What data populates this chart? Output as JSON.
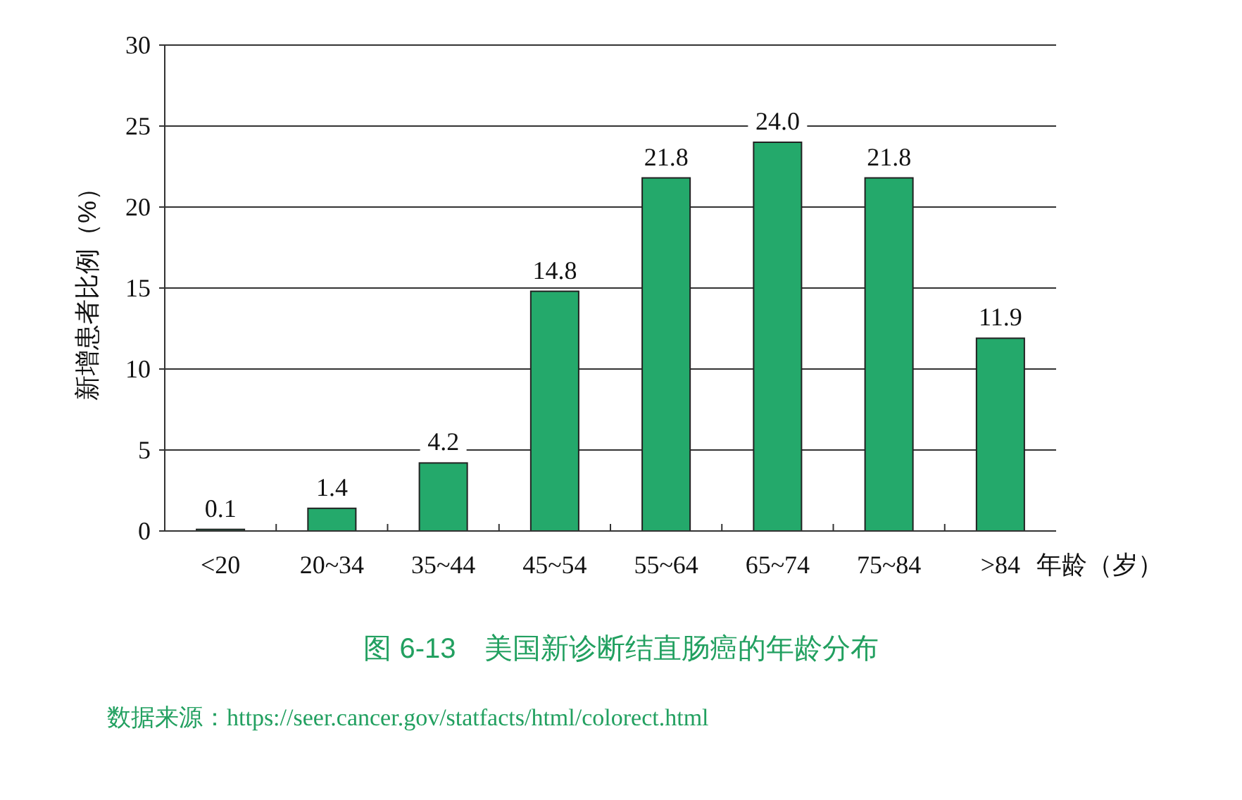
{
  "chart_data": {
    "type": "bar",
    "title": "图 6-13　美国新诊断结直肠癌的年龄分布",
    "xlabel": "年龄（岁）",
    "ylabel": "新增患者比例（%）",
    "categories": [
      "<20",
      "20~34",
      "35~44",
      "45~54",
      "55~64",
      "65~74",
      "75~84",
      ">84"
    ],
    "values": [
      0.1,
      1.4,
      4.2,
      14.8,
      21.8,
      24.0,
      21.8,
      11.9
    ],
    "value_labels": [
      "0.1",
      "1.4",
      "4.2",
      "14.8",
      "21.8",
      "24.0",
      "21.8",
      "11.9"
    ],
    "color": "#24a96b",
    "ylim": [
      0,
      30
    ],
    "yticks": [
      0,
      5,
      10,
      15,
      20,
      25,
      30
    ],
    "grid": "y",
    "annotations": [
      "数据来源：https://seer.cancer.gov/statfacts/html/colorect.html"
    ]
  }
}
